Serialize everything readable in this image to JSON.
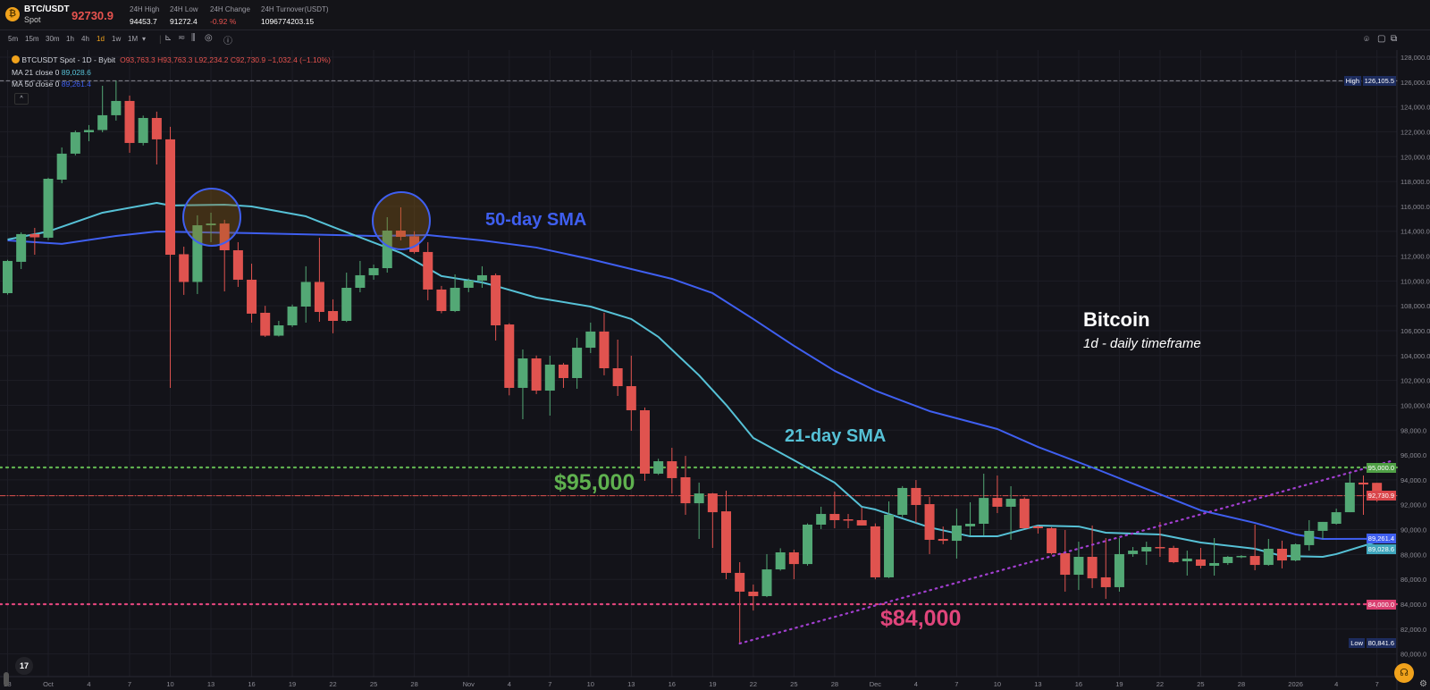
{
  "header": {
    "pair": "BTC/USDT",
    "market": "Spot",
    "last_price": "92730.9",
    "stats": [
      {
        "label": "24H High",
        "value": "94453.7"
      },
      {
        "label": "24H Low",
        "value": "91272.4"
      },
      {
        "label": "24H Change",
        "value": "-0.92 %"
      },
      {
        "label": "24H Turnover(USDT)",
        "value": "1096774203.15"
      }
    ]
  },
  "toolbar": {
    "timeframes": [
      "5m",
      "15m",
      "30m",
      "1h",
      "4h",
      "1d",
      "1w",
      "1M"
    ],
    "active_timeframe": "1d",
    "more_caret": "▾",
    "icons": [
      "chart-type-icon",
      "indicators-icon",
      "compare-icon",
      "settings-icon",
      "info-icon"
    ]
  },
  "legend": {
    "symbol": "BTCUSDT Spot - 1D - Bybit",
    "ohlc": "O93,763.3 H93,763.3 L92,234.2 C92,730.9 −1,032.4 (−1.10%)",
    "ma21_label": "MA 21 close 0",
    "ma21_value": "89,028.6",
    "ma50_label": "MA 50 close 0",
    "ma50_value": "89,261.4",
    "collapse": "^"
  },
  "annotations": {
    "sma50": "50-day SMA",
    "sma21": "21-day SMA",
    "level95": "$95,000",
    "level84": "$84,000",
    "title": "Bitcoin",
    "subtitle": "1d - daily timeframe"
  },
  "colors": {
    "up": "#53a875",
    "down": "#e0534f",
    "ma21": "#56c1d6",
    "ma50": "#3f5ff0",
    "level95": "#5fb14f",
    "level84": "#e0457b",
    "trendline": "#a23fd0",
    "current": "#e0534f",
    "accent": "#f0a21c"
  },
  "chart_data": {
    "type": "candlestick",
    "y_ticks": [
      "128,000.0",
      "126,000.0",
      "124,000.0",
      "122,000.0",
      "120,000.0",
      "118,000.0",
      "116,000.0",
      "114,000.0",
      "112,000.0",
      "110,000.0",
      "108,000.0",
      "106,000.0",
      "104,000.0",
      "102,000.0",
      "100,000.0",
      "98,000.0",
      "96,000.0",
      "94,000.0",
      "92,000.0",
      "90,000.0",
      "88,000.0",
      "86,000.0",
      "84,000.0",
      "82,000.0",
      "80,000.0"
    ],
    "x_ticks": [
      {
        "text": "28",
        "date": "2025-09-28"
      },
      {
        "text": "Oct",
        "date": "2025-10-01"
      },
      {
        "text": "4",
        "date": "2025-10-04"
      },
      {
        "text": "7",
        "date": "2025-10-07"
      },
      {
        "text": "10",
        "date": "2025-10-10"
      },
      {
        "text": "13",
        "date": "2025-10-13"
      },
      {
        "text": "16",
        "date": "2025-10-16"
      },
      {
        "text": "19",
        "date": "2025-10-19"
      },
      {
        "text": "22",
        "date": "2025-10-22"
      },
      {
        "text": "25",
        "date": "2025-10-25"
      },
      {
        "text": "28",
        "date": "2025-10-28"
      },
      {
        "text": "Nov",
        "date": "2025-11-01"
      },
      {
        "text": "4",
        "date": "2025-11-04"
      },
      {
        "text": "7",
        "date": "2025-11-07"
      },
      {
        "text": "10",
        "date": "2025-11-10"
      },
      {
        "text": "13",
        "date": "2025-11-13"
      },
      {
        "text": "16",
        "date": "2025-11-16"
      },
      {
        "text": "19",
        "date": "2025-11-19"
      },
      {
        "text": "22",
        "date": "2025-11-22"
      },
      {
        "text": "25",
        "date": "2025-11-25"
      },
      {
        "text": "28",
        "date": "2025-11-28"
      },
      {
        "text": "Dec",
        "date": "2025-12-01"
      },
      {
        "text": "4",
        "date": "2025-12-04"
      },
      {
        "text": "7",
        "date": "2025-12-07"
      },
      {
        "text": "10",
        "date": "2025-12-10"
      },
      {
        "text": "13",
        "date": "2025-12-13"
      },
      {
        "text": "16",
        "date": "2025-12-16"
      },
      {
        "text": "19",
        "date": "2025-12-19"
      },
      {
        "text": "22",
        "date": "2025-12-22"
      },
      {
        "text": "25",
        "date": "2025-12-25"
      },
      {
        "text": "28",
        "date": "2025-12-28"
      },
      {
        "text": "2026",
        "date": "2026-01-01"
      },
      {
        "text": "4",
        "date": "2026-01-04"
      },
      {
        "text": "7",
        "date": "2026-01-07"
      }
    ],
    "axis_tags": [
      {
        "prefix": "High",
        "label": "126,105.5",
        "value": 126105.5,
        "color": "#1d2c5e"
      },
      {
        "prefix": "",
        "label": "95,000.0",
        "value": 95000,
        "color": "#4f9f45"
      },
      {
        "prefix": "",
        "label": "92,730.9",
        "value": 92730.9,
        "color": "#d9454a"
      },
      {
        "prefix": "",
        "label": "89,261.4",
        "value": 89261.4,
        "color": "#3f5ff0"
      },
      {
        "prefix": "",
        "label": "89,028.6",
        "value": 89028.6,
        "color": "#3fa6bd"
      },
      {
        "prefix": "",
        "label": "84,000.0",
        "value": 84000,
        "color": "#d93f70"
      },
      {
        "prefix": "Low",
        "label": "80,841.6",
        "value": 80841.6,
        "color": "#1d2c5e"
      }
    ],
    "horizontal_lines": [
      {
        "value": 95000,
        "style": "dotted",
        "color": "#5fb14f"
      },
      {
        "value": 84000,
        "style": "dotted",
        "color": "#e0457b"
      },
      {
        "value": 92730.9,
        "style": "dash-dot",
        "color": "#e0534f"
      },
      {
        "value": 126105.5,
        "style": "dashed",
        "color": "#8a8a95"
      }
    ],
    "trendline": {
      "from": {
        "date": "2025-11-21",
        "value": 80841
      },
      "to": {
        "date": "2026-01-08",
        "value": 95500
      },
      "style": "dotted"
    },
    "candles": [
      [
        "2025-09-28",
        109020,
        111700,
        108900,
        111610
      ],
      [
        "2025-09-29",
        111540,
        113910,
        110960,
        113770
      ],
      [
        "2025-09-30",
        113770,
        114270,
        112110,
        113510
      ],
      [
        "2025-10-01",
        113480,
        118300,
        113300,
        118220
      ],
      [
        "2025-10-02",
        118150,
        120740,
        117860,
        120240
      ],
      [
        "2025-10-03",
        120240,
        122100,
        120100,
        121960
      ],
      [
        "2025-10-04",
        121960,
        122540,
        121240,
        122140
      ],
      [
        "2025-10-05",
        122140,
        125700,
        121960,
        123330
      ],
      [
        "2025-10-06",
        123330,
        126105,
        122900,
        124480
      ],
      [
        "2025-10-07",
        124480,
        124910,
        120310,
        121100
      ],
      [
        "2025-10-08",
        121100,
        123300,
        120900,
        123110
      ],
      [
        "2025-10-09",
        123110,
        123620,
        119370,
        121390
      ],
      [
        "2025-10-10",
        121390,
        122400,
        101400,
        112110
      ],
      [
        "2025-10-11",
        112150,
        112760,
        108880,
        109920
      ],
      [
        "2025-10-12",
        109920,
        115280,
        108950,
        114480
      ],
      [
        "2025-10-13",
        114480,
        115490,
        113120,
        114620
      ],
      [
        "2025-10-14",
        114620,
        114920,
        109160,
        112470
      ],
      [
        "2025-10-15",
        112470,
        113120,
        109520,
        110100
      ],
      [
        "2025-10-16",
        110100,
        111390,
        106650,
        107370
      ],
      [
        "2025-10-17",
        107440,
        108000,
        105500,
        105600
      ],
      [
        "2025-10-18",
        105600,
        106790,
        105530,
        106430
      ],
      [
        "2025-10-19",
        106430,
        108100,
        106300,
        107940
      ],
      [
        "2025-10-20",
        107940,
        111180,
        106650,
        109920
      ],
      [
        "2025-10-21",
        109920,
        113480,
        106720,
        107510
      ],
      [
        "2025-10-22",
        107580,
        108520,
        105790,
        106790
      ],
      [
        "2025-10-23",
        106790,
        110670,
        106700,
        109450
      ],
      [
        "2025-10-24",
        109450,
        111610,
        109090,
        110460
      ],
      [
        "2025-10-25",
        110460,
        111320,
        110100,
        111030
      ],
      [
        "2025-10-26",
        111030,
        115130,
        110670,
        114050
      ],
      [
        "2025-10-27",
        114050,
        115920,
        113260,
        113550
      ],
      [
        "2025-10-28",
        113590,
        114000,
        112200,
        112330
      ],
      [
        "2025-10-29",
        112330,
        113120,
        108450,
        109310
      ],
      [
        "2025-10-30",
        109310,
        109600,
        107400,
        107580
      ],
      [
        "2025-10-31",
        107580,
        110530,
        107500,
        109450
      ],
      [
        "2025-11-01",
        109450,
        110200,
        109100,
        110030
      ],
      [
        "2025-11-02",
        110030,
        111180,
        109450,
        110460
      ],
      [
        "2025-11-03",
        110460,
        110600,
        105210,
        106430
      ],
      [
        "2025-11-04",
        106500,
        106600,
        100800,
        101400
      ],
      [
        "2025-11-05",
        101400,
        104490,
        98880,
        103770
      ],
      [
        "2025-11-06",
        103770,
        104000,
        100900,
        101180
      ],
      [
        "2025-11-07",
        101180,
        103990,
        99170,
        103270
      ],
      [
        "2025-11-08",
        103270,
        103400,
        101400,
        102190
      ],
      [
        "2025-11-09",
        102190,
        105430,
        101330,
        104630
      ],
      [
        "2025-11-10",
        104630,
        106650,
        104200,
        105930
      ],
      [
        "2025-11-11",
        105930,
        107440,
        102410,
        102980
      ],
      [
        "2025-11-12",
        102980,
        105280,
        100750,
        101540
      ],
      [
        "2025-11-13",
        101540,
        103990,
        97950,
        99600
      ],
      [
        "2025-11-14",
        99600,
        99820,
        93920,
        94500
      ],
      [
        "2025-11-15",
        94500,
        95700,
        94400,
        95500
      ],
      [
        "2025-11-16",
        95500,
        96580,
        92910,
        94140
      ],
      [
        "2025-11-17",
        94210,
        95930,
        91190,
        92120
      ],
      [
        "2025-11-18",
        92120,
        93780,
        89250,
        92910
      ],
      [
        "2025-11-19",
        92910,
        92950,
        88530,
        91400
      ],
      [
        "2025-11-20",
        91470,
        93130,
        86010,
        86520
      ],
      [
        "2025-11-21",
        86520,
        87380,
        80841,
        85010
      ],
      [
        "2025-11-22",
        85010,
        85580,
        83490,
        84650
      ],
      [
        "2025-11-23",
        84650,
        88030,
        84570,
        86800
      ],
      [
        "2025-11-24",
        86800,
        88500,
        86700,
        88170
      ],
      [
        "2025-11-25",
        88170,
        88390,
        86010,
        87230
      ],
      [
        "2025-11-26",
        87230,
        90500,
        87100,
        90400
      ],
      [
        "2025-11-27",
        90400,
        91840,
        90040,
        91260
      ],
      [
        "2025-11-28",
        91260,
        93060,
        90110,
        90760
      ],
      [
        "2025-11-29",
        90830,
        91260,
        90110,
        90760
      ],
      [
        "2025-11-30",
        90760,
        91760,
        90330,
        90330
      ],
      [
        "2025-12-01",
        90260,
        90500,
        86000,
        86160
      ],
      [
        "2025-12-02",
        86160,
        92270,
        86100,
        91190
      ],
      [
        "2025-12-03",
        91190,
        93500,
        91000,
        93350
      ],
      [
        "2025-12-04",
        93350,
        93990,
        90540,
        91980
      ],
      [
        "2025-12-05",
        92050,
        92630,
        88030,
        89180
      ],
      [
        "2025-12-06",
        89250,
        90250,
        88820,
        89100
      ],
      [
        "2025-12-07",
        89100,
        91690,
        87670,
        90330
      ],
      [
        "2025-12-08",
        90260,
        92200,
        89540,
        90470
      ],
      [
        "2025-12-09",
        90470,
        94500,
        89540,
        92550
      ],
      [
        "2025-12-10",
        92550,
        94350,
        91330,
        91840
      ],
      [
        "2025-12-11",
        91840,
        93490,
        89180,
        92480
      ],
      [
        "2025-12-12",
        92480,
        92600,
        90100,
        90110
      ],
      [
        "2025-12-13",
        90260,
        90330,
        89680,
        90110
      ],
      [
        "2025-12-14",
        90110,
        90200,
        88000,
        88100
      ],
      [
        "2025-12-15",
        88100,
        89970,
        85010,
        86370
      ],
      [
        "2025-12-16",
        86370,
        89030,
        85150,
        87810
      ],
      [
        "2025-12-17",
        87810,
        90330,
        85300,
        86080
      ],
      [
        "2025-12-18",
        86160,
        89320,
        84430,
        85370
      ],
      [
        "2025-12-19",
        85370,
        89320,
        85010,
        88030
      ],
      [
        "2025-12-20",
        88030,
        88600,
        87810,
        88310
      ],
      [
        "2025-12-21",
        88240,
        89030,
        87160,
        88600
      ],
      [
        "2025-12-22",
        88600,
        90610,
        87810,
        88530
      ],
      [
        "2025-12-23",
        88530,
        88700,
        87300,
        87380
      ],
      [
        "2025-12-24",
        87450,
        88310,
        86300,
        87670
      ],
      [
        "2025-12-25",
        87600,
        88530,
        86880,
        87090
      ],
      [
        "2025-12-26",
        87090,
        89320,
        86300,
        87310
      ],
      [
        "2025-12-27",
        87310,
        87880,
        87160,
        87810
      ],
      [
        "2025-12-28",
        87810,
        87950,
        87700,
        87880
      ],
      [
        "2025-12-29",
        87880,
        90400,
        86730,
        87160
      ],
      [
        "2025-12-30",
        87160,
        89250,
        87090,
        88460
      ],
      [
        "2025-12-31",
        88460,
        89110,
        86880,
        87520
      ],
      [
        "2026-01-01",
        87520,
        88890,
        87450,
        88820
      ],
      [
        "2026-01-02",
        88750,
        90760,
        88310,
        89900
      ],
      [
        "2026-01-03",
        89900,
        90620,
        89250,
        90620
      ],
      [
        "2026-01-04",
        90470,
        91690,
        90400,
        91400
      ],
      [
        "2026-01-05",
        91400,
        94640,
        91400,
        93780
      ],
      [
        "2026-01-06",
        93780,
        94350,
        91190,
        93630
      ],
      [
        "2026-01-07",
        93763.3,
        93763.3,
        92234.2,
        92730.9
      ]
    ],
    "ma21": [
      [
        "2025-09-28",
        113330
      ],
      [
        "2025-10-01",
        113980
      ],
      [
        "2025-10-05",
        115490
      ],
      [
        "2025-10-09",
        116280
      ],
      [
        "2025-10-10",
        116070
      ],
      [
        "2025-10-14",
        116140
      ],
      [
        "2025-10-16",
        115990
      ],
      [
        "2025-10-20",
        115200
      ],
      [
        "2025-10-22",
        114340
      ],
      [
        "2025-10-27",
        112260
      ],
      [
        "2025-10-30",
        110390
      ],
      [
        "2025-11-02",
        109880
      ],
      [
        "2025-11-03",
        109600
      ],
      [
        "2025-11-06",
        108660
      ],
      [
        "2025-11-10",
        107940
      ],
      [
        "2025-11-13",
        106940
      ],
      [
        "2025-11-15",
        105500
      ],
      [
        "2025-11-18",
        102410
      ],
      [
        "2025-11-20",
        100030
      ],
      [
        "2025-11-22",
        97370
      ],
      [
        "2025-11-25",
        95580
      ],
      [
        "2025-11-28",
        93780
      ],
      [
        "2025-11-30",
        91840
      ],
      [
        "2025-12-01",
        91620
      ],
      [
        "2025-12-05",
        90180
      ],
      [
        "2025-12-08",
        89460
      ],
      [
        "2025-12-10",
        89460
      ],
      [
        "2025-12-13",
        90330
      ],
      [
        "2025-12-16",
        90250
      ],
      [
        "2025-12-18",
        89750
      ],
      [
        "2025-12-22",
        89610
      ],
      [
        "2025-12-25",
        88960
      ],
      [
        "2025-12-29",
        88460
      ],
      [
        "2025-12-31",
        87880
      ],
      [
        "2026-01-03",
        87810
      ],
      [
        "2026-01-04",
        88030
      ],
      [
        "2026-01-07",
        89028.6
      ]
    ],
    "ma50": [
      [
        "2025-09-28",
        113260
      ],
      [
        "2025-10-02",
        112980
      ],
      [
        "2025-10-06",
        113620
      ],
      [
        "2025-10-09",
        113980
      ],
      [
        "2025-10-16",
        113840
      ],
      [
        "2025-10-25",
        113620
      ],
      [
        "2025-10-29",
        113690
      ],
      [
        "2025-11-02",
        113260
      ],
      [
        "2025-11-06",
        112690
      ],
      [
        "2025-11-10",
        111750
      ],
      [
        "2025-11-16",
        110170
      ],
      [
        "2025-11-19",
        109020
      ],
      [
        "2025-11-22",
        106940
      ],
      [
        "2025-11-25",
        104780
      ],
      [
        "2025-11-28",
        102770
      ],
      [
        "2025-12-01",
        101180
      ],
      [
        "2025-12-05",
        99530
      ],
      [
        "2025-12-10",
        98090
      ],
      [
        "2025-12-13",
        96650
      ],
      [
        "2025-12-17",
        95000
      ],
      [
        "2025-12-21",
        93270
      ],
      [
        "2025-12-25",
        91550
      ],
      [
        "2025-12-29",
        90540
      ],
      [
        "2026-01-01",
        89610
      ],
      [
        "2026-01-03",
        89250
      ],
      [
        "2026-01-07",
        89261.4
      ]
    ]
  }
}
